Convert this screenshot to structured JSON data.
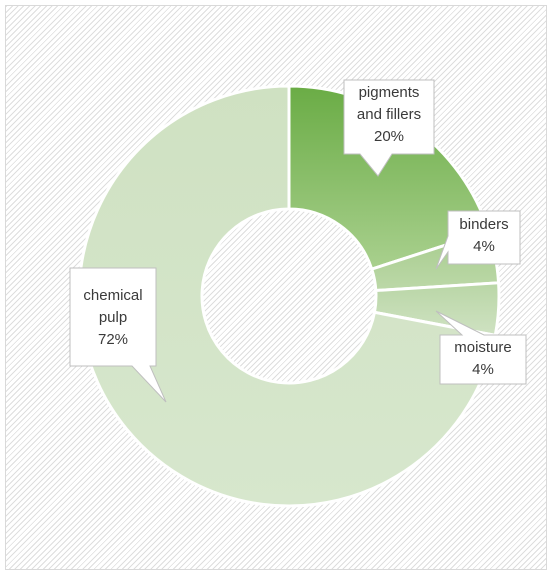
{
  "chart_data": {
    "type": "pie",
    "variant": "doughnut",
    "slices": [
      {
        "label": "pigments and fillers",
        "label_lines": [
          "pigments",
          "and fillers"
        ],
        "value": 20,
        "value_label": "20%",
        "color": "#8fbf6c"
      },
      {
        "label": "binders",
        "label_lines": [
          "binders"
        ],
        "value": 4,
        "value_label": "4%",
        "color": "#b3d39c"
      },
      {
        "label": "moisture",
        "label_lines": [
          "moisture"
        ],
        "value": 4,
        "value_label": "4%",
        "color": "#c5dcb8"
      },
      {
        "label": "chemical pulp",
        "label_lines": [
          "chemical",
          "pulp"
        ],
        "value": 72,
        "value_label": "72%",
        "color": "#d2e3c6"
      }
    ],
    "legend": "none",
    "data_labels": "callouts"
  }
}
